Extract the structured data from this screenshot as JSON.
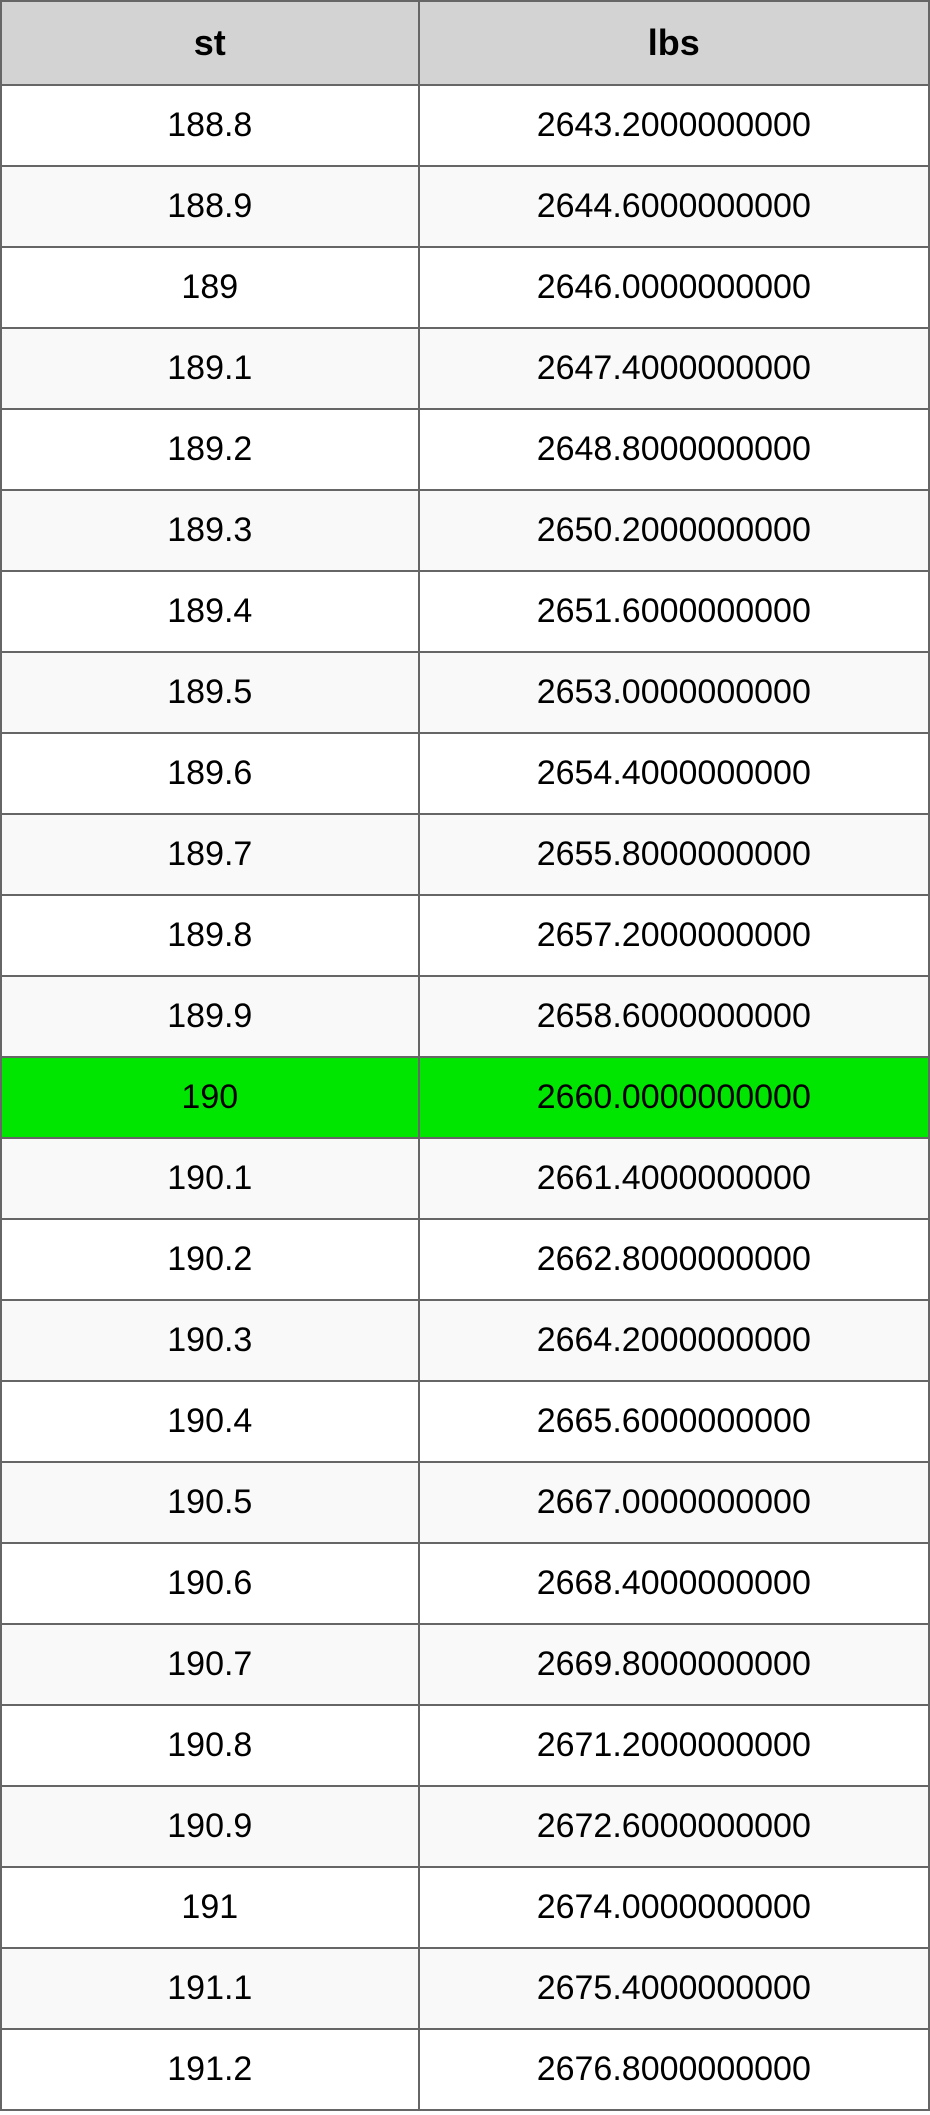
{
  "table": {
    "type": "table",
    "columns": [
      {
        "key": "st",
        "label": "st",
        "width_pct": 45
      },
      {
        "key": "lbs",
        "label": "lbs",
        "width_pct": 55
      }
    ],
    "header_bg": "#d3d3d3",
    "header_fontsize": 36,
    "cell_fontsize": 34,
    "border_color": "#666666",
    "row_bg_even": "#ffffff",
    "row_bg_odd": "#f9f9f9",
    "highlight_bg": "#00e600",
    "text_color": "#000000",
    "rows": [
      {
        "st": "188.8",
        "lbs": "2643.2000000000",
        "highlighted": false
      },
      {
        "st": "188.9",
        "lbs": "2644.6000000000",
        "highlighted": false
      },
      {
        "st": "189",
        "lbs": "2646.0000000000",
        "highlighted": false
      },
      {
        "st": "189.1",
        "lbs": "2647.4000000000",
        "highlighted": false
      },
      {
        "st": "189.2",
        "lbs": "2648.8000000000",
        "highlighted": false
      },
      {
        "st": "189.3",
        "lbs": "2650.2000000000",
        "highlighted": false
      },
      {
        "st": "189.4",
        "lbs": "2651.6000000000",
        "highlighted": false
      },
      {
        "st": "189.5",
        "lbs": "2653.0000000000",
        "highlighted": false
      },
      {
        "st": "189.6",
        "lbs": "2654.4000000000",
        "highlighted": false
      },
      {
        "st": "189.7",
        "lbs": "2655.8000000000",
        "highlighted": false
      },
      {
        "st": "189.8",
        "lbs": "2657.2000000000",
        "highlighted": false
      },
      {
        "st": "189.9",
        "lbs": "2658.6000000000",
        "highlighted": false
      },
      {
        "st": "190",
        "lbs": "2660.0000000000",
        "highlighted": true
      },
      {
        "st": "190.1",
        "lbs": "2661.4000000000",
        "highlighted": false
      },
      {
        "st": "190.2",
        "lbs": "2662.8000000000",
        "highlighted": false
      },
      {
        "st": "190.3",
        "lbs": "2664.2000000000",
        "highlighted": false
      },
      {
        "st": "190.4",
        "lbs": "2665.6000000000",
        "highlighted": false
      },
      {
        "st": "190.5",
        "lbs": "2667.0000000000",
        "highlighted": false
      },
      {
        "st": "190.6",
        "lbs": "2668.4000000000",
        "highlighted": false
      },
      {
        "st": "190.7",
        "lbs": "2669.8000000000",
        "highlighted": false
      },
      {
        "st": "190.8",
        "lbs": "2671.2000000000",
        "highlighted": false
      },
      {
        "st": "190.9",
        "lbs": "2672.6000000000",
        "highlighted": false
      },
      {
        "st": "191",
        "lbs": "2674.0000000000",
        "highlighted": false
      },
      {
        "st": "191.1",
        "lbs": "2675.4000000000",
        "highlighted": false
      },
      {
        "st": "191.2",
        "lbs": "2676.8000000000",
        "highlighted": false
      }
    ]
  }
}
